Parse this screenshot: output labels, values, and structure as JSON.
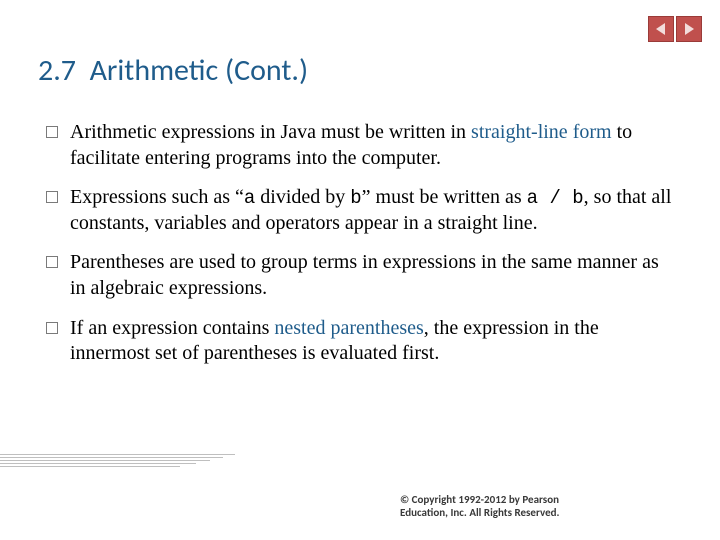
{
  "title": {
    "number": "2.7",
    "text": "Arithmetic (Cont.)",
    "color": "#1f5c8b",
    "fontsize": 30
  },
  "nav": {
    "prev_bg": "#c0504d",
    "next_bg": "#c0504d",
    "arrow_color": "#f2dcdb"
  },
  "bullets": [
    {
      "segments": [
        {
          "t": "Arithmetic expressions in Java must be written in ",
          "cls": ""
        },
        {
          "t": "straight-line form",
          "cls": "kw"
        },
        {
          "t": " to facilitate entering programs into the computer.",
          "cls": ""
        }
      ]
    },
    {
      "segments": [
        {
          "t": "Expressions such as “",
          "cls": ""
        },
        {
          "t": "a",
          "cls": "code"
        },
        {
          "t": " divided by ",
          "cls": ""
        },
        {
          "t": "b",
          "cls": "code"
        },
        {
          "t": "” must be written as ",
          "cls": ""
        },
        {
          "t": "a / b",
          "cls": "code"
        },
        {
          "t": ", so that all constants, variables and operators appear in a straight line.",
          "cls": ""
        }
      ]
    },
    {
      "segments": [
        {
          "t": "Parentheses are used to group terms in expressions in the same manner as in algebraic expressions.",
          "cls": ""
        }
      ]
    },
    {
      "segments": [
        {
          "t": "If an expression contains ",
          "cls": ""
        },
        {
          "t": "nested parentheses",
          "cls": "kw"
        },
        {
          "t": ", the expression in the innermost set of parentheses is evaluated first.",
          "cls": ""
        }
      ]
    }
  ],
  "footer": {
    "line1": "© Copyright 1992-2012 by Pearson",
    "line2": "Education, Inc. All Rights Reserved."
  },
  "style": {
    "body_fontsize": 20,
    "body_color": "#000000",
    "keyword_color": "#1f5c8b",
    "bullet_border_color": "#7a7a7a",
    "decor_line_color": "#bfbfbf"
  }
}
